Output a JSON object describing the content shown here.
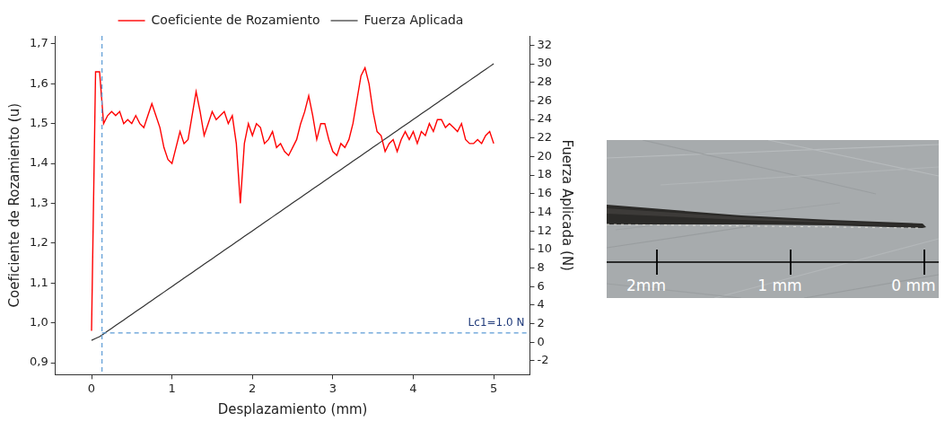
{
  "chart_data": {
    "type": "line",
    "xlabel": "Desplazamiento (mm)",
    "ylabel": "Coeficiente de Rozamiento (u)",
    "y2label": "Fuerza Aplicada (N)",
    "x": [
      0,
      0.05,
      0.1,
      0.15,
      0.2,
      0.25,
      0.3,
      0.35,
      0.4,
      0.45,
      0.5,
      0.55,
      0.6,
      0.65,
      0.7,
      0.75,
      0.8,
      0.85,
      0.9,
      0.95,
      1,
      1.05,
      1.1,
      1.15,
      1.2,
      1.25,
      1.3,
      1.35,
      1.4,
      1.45,
      1.5,
      1.55,
      1.6,
      1.65,
      1.7,
      1.75,
      1.8,
      1.85,
      1.9,
      1.95,
      2,
      2.05,
      2.1,
      2.15,
      2.2,
      2.25,
      2.3,
      2.35,
      2.4,
      2.45,
      2.5,
      2.55,
      2.6,
      2.65,
      2.7,
      2.75,
      2.8,
      2.85,
      2.9,
      2.95,
      3,
      3.05,
      3.1,
      3.15,
      3.2,
      3.25,
      3.3,
      3.35,
      3.4,
      3.45,
      3.5,
      3.55,
      3.6,
      3.65,
      3.7,
      3.75,
      3.8,
      3.85,
      3.9,
      3.95,
      4,
      4.05,
      4.1,
      4.15,
      4.2,
      4.25,
      4.3,
      4.35,
      4.4,
      4.45,
      4.5,
      4.55,
      4.6,
      4.65,
      4.7,
      4.75,
      4.8,
      4.85,
      4.9,
      4.95,
      5
    ],
    "series": [
      {
        "name": "Coeficiente de Rozamiento",
        "color": "#ff0000",
        "values": [
          0.98,
          1.63,
          1.63,
          1.5,
          1.52,
          1.53,
          1.52,
          1.53,
          1.5,
          1.51,
          1.5,
          1.52,
          1.5,
          1.49,
          1.52,
          1.55,
          1.52,
          1.49,
          1.44,
          1.41,
          1.4,
          1.44,
          1.48,
          1.45,
          1.46,
          1.52,
          1.58,
          1.53,
          1.47,
          1.5,
          1.53,
          1.51,
          1.52,
          1.53,
          1.5,
          1.52,
          1.45,
          1.3,
          1.45,
          1.5,
          1.47,
          1.5,
          1.49,
          1.45,
          1.46,
          1.48,
          1.44,
          1.45,
          1.43,
          1.42,
          1.44,
          1.46,
          1.5,
          1.53,
          1.57,
          1.52,
          1.46,
          1.5,
          1.5,
          1.46,
          1.43,
          1.42,
          1.45,
          1.44,
          1.46,
          1.5,
          1.56,
          1.62,
          1.64,
          1.6,
          1.53,
          1.48,
          1.47,
          1.43,
          1.45,
          1.46,
          1.43,
          1.46,
          1.48,
          1.46,
          1.48,
          1.45,
          1.48,
          1.47,
          1.5,
          1.48,
          1.51,
          1.51,
          1.49,
          1.5,
          1.49,
          1.48,
          1.5,
          1.46,
          1.45,
          1.45,
          1.46,
          1.45,
          1.47,
          1.48,
          1.45
        ]
      },
      {
        "name": "Fuerza Aplicada",
        "color": "#333333",
        "axis": "y2",
        "values": [
          0.2,
          0.4,
          0.6,
          0.9,
          1.2,
          1.5,
          1.8,
          2.1,
          2.4,
          2.7,
          3.0,
          3.3,
          3.6,
          3.9,
          4.2,
          4.5,
          4.8,
          5.1,
          5.4,
          5.7,
          6.0,
          6.3,
          6.6,
          6.9,
          7.2,
          7.5,
          7.8,
          8.1,
          8.4,
          8.7,
          9.0,
          9.3,
          9.6,
          9.9,
          10.2,
          10.5,
          10.8,
          11.1,
          11.4,
          11.7,
          12.0,
          12.3,
          12.6,
          12.9,
          13.2,
          13.5,
          13.8,
          14.1,
          14.4,
          14.7,
          15.0,
          15.3,
          15.6,
          15.9,
          16.2,
          16.5,
          16.8,
          17.1,
          17.4,
          17.7,
          18.0,
          18.3,
          18.6,
          18.9,
          19.2,
          19.5,
          19.8,
          20.1,
          20.4,
          20.7,
          21.0,
          21.3,
          21.6,
          21.9,
          22.2,
          22.5,
          22.8,
          23.1,
          23.4,
          23.7,
          24.0,
          24.3,
          24.6,
          24.9,
          25.2,
          25.5,
          25.8,
          26.1,
          26.4,
          26.7,
          27.0,
          27.3,
          27.6,
          27.9,
          28.2,
          28.5,
          28.8,
          29.1,
          29.4,
          29.7,
          30.0
        ]
      }
    ],
    "xlim": [
      -0.45,
      5.45
    ],
    "xticks": [
      0,
      1,
      2,
      3,
      4,
      5
    ],
    "ylim": [
      0.87,
      1.72
    ],
    "yticks": [
      {
        "value": 0.9,
        "label": "0,9"
      },
      {
        "value": 1.0,
        "label": "1,0"
      },
      {
        "value": 1.1,
        "label": "1,1"
      },
      {
        "value": 1.2,
        "label": "1,2"
      },
      {
        "value": 1.3,
        "label": "1,3"
      },
      {
        "value": 1.4,
        "label": "1,4"
      },
      {
        "value": 1.5,
        "label": "1,5"
      },
      {
        "value": 1.6,
        "label": "1,6"
      },
      {
        "value": 1.7,
        "label": "1,7"
      }
    ],
    "y2lim": [
      -3.5,
      33
    ],
    "y2ticks": [
      -2,
      0,
      2,
      4,
      6,
      8,
      10,
      12,
      14,
      16,
      18,
      20,
      22,
      24,
      26,
      28,
      30,
      32
    ],
    "annotations": [
      {
        "label": "Lc1=1.0 N",
        "x": 0.13,
        "y2": 1.0
      }
    ],
    "grid": false,
    "legend": "top"
  },
  "micrograph": {
    "scale_ticks": [
      {
        "value": 2,
        "label": "2mm"
      },
      {
        "value": 1,
        "label": "1 mm"
      },
      {
        "value": 0,
        "label": "0 mm"
      }
    ]
  }
}
